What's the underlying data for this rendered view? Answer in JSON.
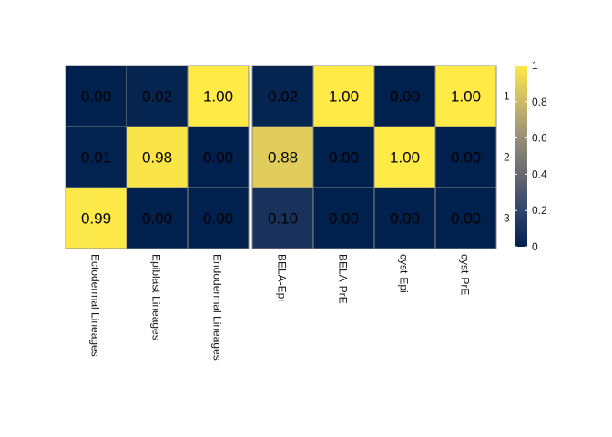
{
  "chart_data": {
    "type": "heatmap",
    "title": "",
    "columns": [
      "Ectodermal Lineages",
      "Epiblast Lineages",
      "Endodermal Lineages",
      "BELA-Epi",
      "BELA-PrE",
      "cyst-Epi",
      "cyst-PrE"
    ],
    "column_groups": [
      [
        "Ectodermal Lineages",
        "Epiblast Lineages",
        "Endodermal Lineages"
      ],
      [
        "BELA-Epi",
        "BELA-PrE",
        "cyst-Epi",
        "cyst-PrE"
      ]
    ],
    "rows": [
      "1",
      "2",
      "3"
    ],
    "values": [
      [
        0.0,
        0.02,
        1.0,
        0.02,
        1.0,
        0.0,
        1.0
      ],
      [
        0.01,
        0.98,
        0.0,
        0.88,
        0.0,
        1.0,
        0.0
      ],
      [
        0.99,
        0.0,
        0.0,
        0.1,
        0.0,
        0.0,
        0.0
      ]
    ],
    "value_labels": [
      [
        "0.00",
        "0.02",
        "1.00",
        "0.02",
        "1.00",
        "0.00",
        "1.00"
      ],
      [
        "0.01",
        "0.98",
        "0.00",
        "0.88",
        "0.00",
        "1.00",
        "0.00"
      ],
      [
        "0.99",
        "0.00",
        "0.00",
        "0.10",
        "0.00",
        "0.00",
        "0.00"
      ]
    ],
    "colorbar": {
      "min": 0,
      "max": 1,
      "ticks": [
        "0",
        "0.2",
        "0.4",
        "0.6",
        "0.8",
        "1"
      ],
      "colors": [
        "#00204d",
        "#31446b",
        "#666970",
        "#958f78",
        "#cbba69",
        "#ffea46"
      ]
    },
    "row_labels_side": "right",
    "legend_placement": "right"
  }
}
